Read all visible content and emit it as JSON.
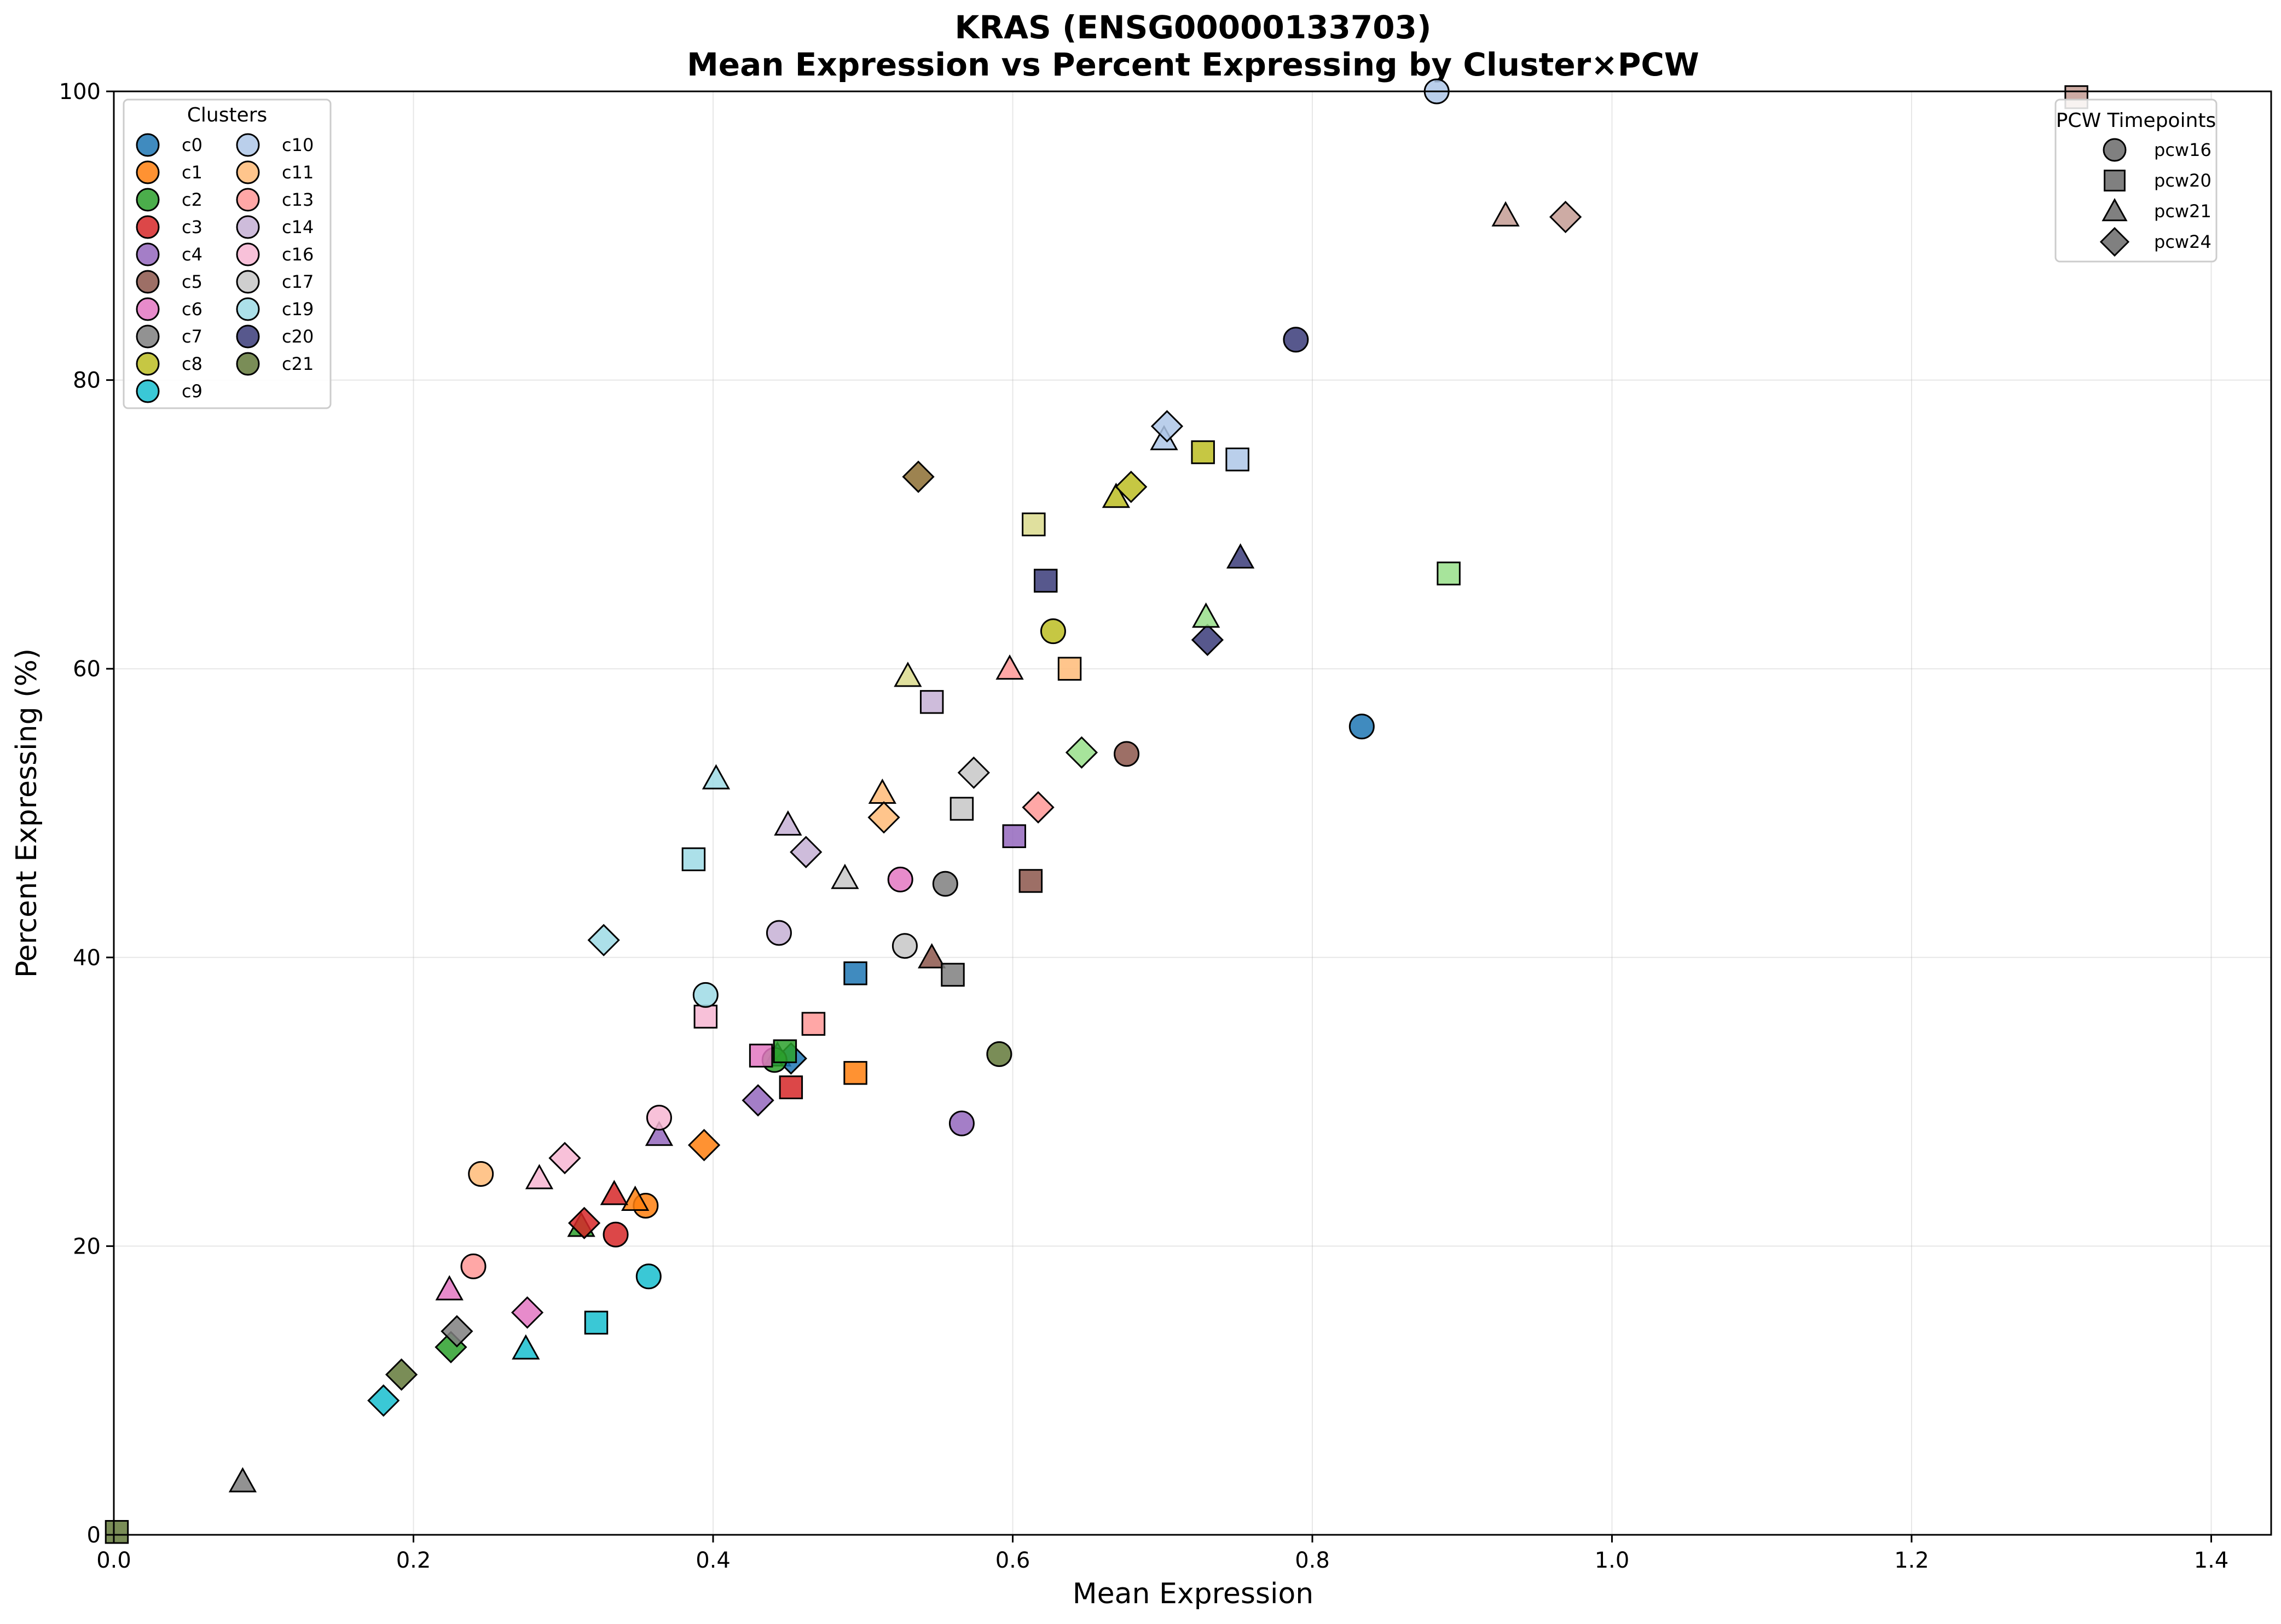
{
  "chart_data": {
    "type": "scatter",
    "title": "KRAS (ENSG00000133703)",
    "subtitle": "Mean Expression vs Percent Expressing by Cluster×PCW",
    "xlabel": "Mean Expression",
    "ylabel": "Percent Expressing (%)",
    "xlim": [
      0,
      1.44
    ],
    "ylim": [
      0,
      100
    ],
    "xticks": [
      "0.0",
      "0.2",
      "0.4",
      "0.6",
      "0.8",
      "1.0",
      "1.2",
      "1.4"
    ],
    "yticks": [
      "0",
      "20",
      "40",
      "60",
      "80",
      "100"
    ],
    "grid": true,
    "legend_clusters": {
      "title": "Clusters",
      "placement": "top-left",
      "entries": [
        {
          "name": "c0",
          "color": "#1f77b4"
        },
        {
          "name": "c1",
          "color": "#ff7f0e"
        },
        {
          "name": "c2",
          "color": "#2ca02c"
        },
        {
          "name": "c3",
          "color": "#d62728"
        },
        {
          "name": "c4",
          "color": "#9467bd"
        },
        {
          "name": "c5",
          "color": "#8c564b"
        },
        {
          "name": "c6",
          "color": "#e377c2"
        },
        {
          "name": "c7",
          "color": "#7f7f7f"
        },
        {
          "name": "c8",
          "color": "#bcbd22"
        },
        {
          "name": "c9",
          "color": "#17becf"
        },
        {
          "name": "c10",
          "color": "#aec7e8"
        },
        {
          "name": "c11",
          "color": "#ffbb78"
        },
        {
          "name": "c13",
          "color": "#ff9896"
        },
        {
          "name": "c14",
          "color": "#c5b0d5"
        },
        {
          "name": "c16",
          "color": "#f7b6d2"
        },
        {
          "name": "c17",
          "color": "#c7c7c7"
        },
        {
          "name": "c19",
          "color": "#9edae5"
        },
        {
          "name": "c20",
          "color": "#393b79"
        },
        {
          "name": "c21",
          "color": "#637939"
        }
      ]
    },
    "legend_timepoints": {
      "title": "PCW Timepoints",
      "placement": "top-right",
      "entries": [
        {
          "name": "pcw16",
          "marker": "circle"
        },
        {
          "name": "pcw20",
          "marker": "square"
        },
        {
          "name": "pcw21",
          "marker": "triangle"
        },
        {
          "name": "pcw24",
          "marker": "diamond"
        }
      ]
    },
    "points": [
      {
        "x": 0.833,
        "y": 56.0,
        "color": "#1f77b4",
        "marker": "circle"
      },
      {
        "x": 0.495,
        "y": 38.9,
        "color": "#1f77b4",
        "marker": "square"
      },
      {
        "x": 0.443,
        "y": 33.2,
        "color": "#1f77b4",
        "marker": "triangle"
      },
      {
        "x": 0.452,
        "y": 33.0,
        "color": "#1f77b4",
        "marker": "diamond"
      },
      {
        "x": 0.355,
        "y": 22.8,
        "color": "#ff7f0e",
        "marker": "circle"
      },
      {
        "x": 0.495,
        "y": 32.0,
        "color": "#ff7f0e",
        "marker": "square"
      },
      {
        "x": 0.348,
        "y": 23.2,
        "color": "#ff7f0e",
        "marker": "triangle"
      },
      {
        "x": 0.394,
        "y": 27.0,
        "color": "#ff7f0e",
        "marker": "diamond"
      },
      {
        "x": 0.441,
        "y": 32.9,
        "color": "#2ca02c",
        "marker": "circle"
      },
      {
        "x": 0.448,
        "y": 33.5,
        "color": "#2ca02c",
        "marker": "square"
      },
      {
        "x": 0.312,
        "y": 21.4,
        "color": "#2ca02c",
        "marker": "triangle"
      },
      {
        "x": 0.225,
        "y": 13.0,
        "color": "#2ca02c",
        "marker": "diamond"
      },
      {
        "x": 0.335,
        "y": 20.8,
        "color": "#d62728",
        "marker": "circle"
      },
      {
        "x": 0.452,
        "y": 31.0,
        "color": "#d62728",
        "marker": "square"
      },
      {
        "x": 0.334,
        "y": 23.6,
        "color": "#d62728",
        "marker": "triangle"
      },
      {
        "x": 0.314,
        "y": 21.6,
        "color": "#d62728",
        "marker": "diamond"
      },
      {
        "x": 0.566,
        "y": 28.5,
        "color": "#9467bd",
        "marker": "circle"
      },
      {
        "x": 0.601,
        "y": 48.4,
        "color": "#9467bd",
        "marker": "square"
      },
      {
        "x": 0.364,
        "y": 27.7,
        "color": "#9467bd",
        "marker": "triangle"
      },
      {
        "x": 0.43,
        "y": 30.1,
        "color": "#9467bd",
        "marker": "diamond"
      },
      {
        "x": 0.676,
        "y": 54.1,
        "color": "#8c564b",
        "marker": "circle"
      },
      {
        "x": 0.612,
        "y": 45.3,
        "color": "#8c564b",
        "marker": "square"
      },
      {
        "x": 0.546,
        "y": 40.0,
        "color": "#8c564b",
        "marker": "triangle"
      },
      {
        "x": 0.525,
        "y": 45.4,
        "color": "#e377c2",
        "marker": "circle"
      },
      {
        "x": 0.432,
        "y": 33.2,
        "color": "#e377c2",
        "marker": "square"
      },
      {
        "x": 0.224,
        "y": 17.0,
        "color": "#e377c2",
        "marker": "triangle"
      },
      {
        "x": 0.276,
        "y": 15.4,
        "color": "#e377c2",
        "marker": "diamond"
      },
      {
        "x": 0.555,
        "y": 45.1,
        "color": "#7f7f7f",
        "marker": "circle"
      },
      {
        "x": 0.56,
        "y": 38.8,
        "color": "#7f7f7f",
        "marker": "square"
      },
      {
        "x": 0.086,
        "y": 3.7,
        "color": "#7f7f7f",
        "marker": "triangle"
      },
      {
        "x": 0.229,
        "y": 14.1,
        "color": "#7f7f7f",
        "marker": "diamond"
      },
      {
        "x": 0.627,
        "y": 62.6,
        "color": "#bcbd22",
        "marker": "circle"
      },
      {
        "x": 0.727,
        "y": 75.0,
        "color": "#bcbd22",
        "marker": "square"
      },
      {
        "x": 0.669,
        "y": 71.9,
        "color": "#bcbd22",
        "marker": "triangle"
      },
      {
        "x": 0.679,
        "y": 72.6,
        "color": "#bcbd22",
        "marker": "diamond"
      },
      {
        "x": 0.357,
        "y": 17.9,
        "color": "#17becf",
        "marker": "circle"
      },
      {
        "x": 0.322,
        "y": 14.7,
        "color": "#17becf",
        "marker": "square"
      },
      {
        "x": 0.275,
        "y": 12.9,
        "color": "#17becf",
        "marker": "triangle"
      },
      {
        "x": 0.18,
        "y": 9.3,
        "color": "#17becf",
        "marker": "diamond"
      },
      {
        "x": 0.883,
        "y": 100.0,
        "color": "#aec7e8",
        "marker": "circle"
      },
      {
        "x": 0.75,
        "y": 74.5,
        "color": "#aec7e8",
        "marker": "square"
      },
      {
        "x": 0.701,
        "y": 75.9,
        "color": "#aec7e8",
        "marker": "triangle"
      },
      {
        "x": 0.703,
        "y": 76.8,
        "color": "#aec7e8",
        "marker": "diamond"
      },
      {
        "x": 0.245,
        "y": 25.0,
        "color": "#ffbb78",
        "marker": "circle"
      },
      {
        "x": 0.638,
        "y": 60.0,
        "color": "#ffbb78",
        "marker": "square"
      },
      {
        "x": 0.513,
        "y": 51.4,
        "color": "#ffbb78",
        "marker": "triangle"
      },
      {
        "x": 0.514,
        "y": 49.7,
        "color": "#ffbb78",
        "marker": "diamond"
      },
      {
        "x": 0.24,
        "y": 18.6,
        "color": "#ff9896",
        "marker": "circle"
      },
      {
        "x": 0.467,
        "y": 35.4,
        "color": "#ff9896",
        "marker": "square"
      },
      {
        "x": 0.598,
        "y": 60.0,
        "color": "#ff9896",
        "marker": "triangle"
      },
      {
        "x": 0.617,
        "y": 50.4,
        "color": "#ff9896",
        "marker": "diamond"
      },
      {
        "x": 0.444,
        "y": 41.7,
        "color": "#c5b0d5",
        "marker": "circle"
      },
      {
        "x": 0.546,
        "y": 57.7,
        "color": "#c5b0d5",
        "marker": "square"
      },
      {
        "x": 0.45,
        "y": 49.2,
        "color": "#c5b0d5",
        "marker": "triangle"
      },
      {
        "x": 0.462,
        "y": 47.3,
        "color": "#c5b0d5",
        "marker": "diamond"
      },
      {
        "x": 0.364,
        "y": 28.9,
        "color": "#f7b6d2",
        "marker": "circle"
      },
      {
        "x": 0.395,
        "y": 35.9,
        "color": "#f7b6d2",
        "marker": "square"
      },
      {
        "x": 0.284,
        "y": 24.7,
        "color": "#f7b6d2",
        "marker": "triangle"
      },
      {
        "x": 0.301,
        "y": 26.1,
        "color": "#f7b6d2",
        "marker": "diamond"
      },
      {
        "x": 0.528,
        "y": 40.8,
        "color": "#c7c7c7",
        "marker": "circle"
      },
      {
        "x": 0.566,
        "y": 50.3,
        "color": "#c7c7c7",
        "marker": "square"
      },
      {
        "x": 0.488,
        "y": 45.5,
        "color": "#c7c7c7",
        "marker": "triangle"
      },
      {
        "x": 0.574,
        "y": 52.8,
        "color": "#c7c7c7",
        "marker": "diamond"
      },
      {
        "x": 0.395,
        "y": 37.4,
        "color": "#9edae5",
        "marker": "circle"
      },
      {
        "x": 0.387,
        "y": 46.8,
        "color": "#9edae5",
        "marker": "square"
      },
      {
        "x": 0.402,
        "y": 52.4,
        "color": "#9edae5",
        "marker": "triangle"
      },
      {
        "x": 0.327,
        "y": 41.2,
        "color": "#9edae5",
        "marker": "diamond"
      },
      {
        "x": 0.789,
        "y": 82.8,
        "color": "#393b79",
        "marker": "circle"
      },
      {
        "x": 0.622,
        "y": 66.1,
        "color": "#393b79",
        "marker": "square"
      },
      {
        "x": 0.752,
        "y": 67.7,
        "color": "#393b79",
        "marker": "triangle"
      },
      {
        "x": 0.73,
        "y": 62.0,
        "color": "#393b79",
        "marker": "diamond"
      },
      {
        "x": 0.591,
        "y": 33.3,
        "color": "#637939",
        "marker": "circle"
      },
      {
        "x": 0.002,
        "y": 0.2,
        "color": "#637939",
        "marker": "square"
      },
      {
        "x": 0.192,
        "y": 11.1,
        "color": "#637939",
        "marker": "diamond"
      },
      {
        "x": 0.614,
        "y": 70.0,
        "color": "#dbdb8d",
        "marker": "square"
      },
      {
        "x": 0.53,
        "y": 59.5,
        "color": "#dbdb8d",
        "marker": "triangle"
      },
      {
        "x": 0.537,
        "y": 73.3,
        "color": "#8c6d31",
        "marker": "diamond"
      },
      {
        "x": 0.891,
        "y": 66.6,
        "color": "#98df8a",
        "marker": "square"
      },
      {
        "x": 0.729,
        "y": 63.6,
        "color": "#98df8a",
        "marker": "triangle"
      },
      {
        "x": 0.646,
        "y": 54.2,
        "color": "#98df8a",
        "marker": "diamond"
      },
      {
        "x": 0.929,
        "y": 91.4,
        "color": "#c49c94",
        "marker": "triangle"
      },
      {
        "x": 0.969,
        "y": 91.3,
        "color": "#c49c94",
        "marker": "diamond"
      },
      {
        "x": 1.31,
        "y": 99.6,
        "color": "#c49c94",
        "marker": "square"
      }
    ]
  }
}
